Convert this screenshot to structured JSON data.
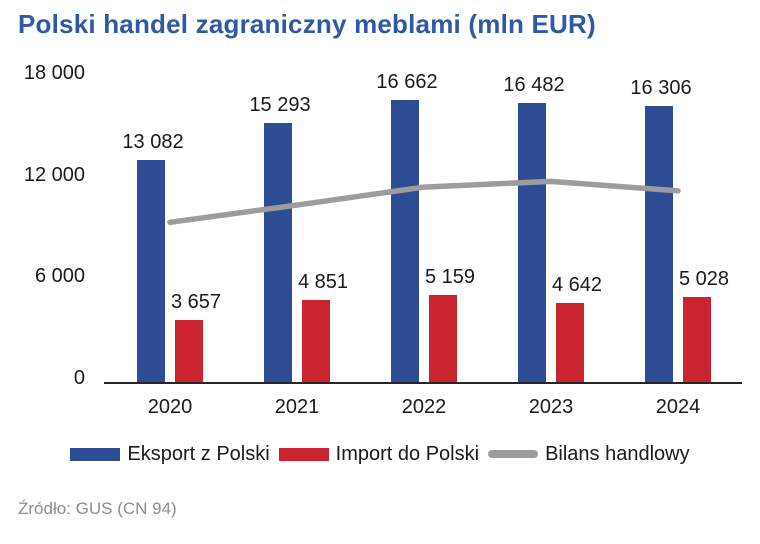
{
  "title": "Polski handel zagraniczny meblami (mln EUR)",
  "source": "Źródło: GUS (CN 94)",
  "colors": {
    "title_blue": "#2F58A5",
    "export_blue": "#2D4C94",
    "import_red": "#C92430",
    "balance_gray": "#9C9C9C",
    "label_black": "#1A1A1A",
    "axis_black": "#262626",
    "source_gray": "#8C8C8C"
  },
  "chart_data": {
    "type": "combo",
    "title": "Polski handel zagraniczny meblami (mln EUR)",
    "categories": [
      "2020",
      "2021",
      "2022",
      "2023",
      "2024"
    ],
    "series": [
      {
        "name": "Eksport z Polski",
        "type": "bar",
        "color_key": "export_blue",
        "values": [
          13082,
          15293,
          16662,
          16482,
          16306
        ],
        "labels": [
          "13 082",
          "15 293",
          "16 662",
          "16 482",
          "16 306"
        ]
      },
      {
        "name": "Import do Polski",
        "type": "bar",
        "color_key": "import_red",
        "values": [
          3657,
          4851,
          5159,
          4642,
          5028
        ],
        "labels": [
          "3 657",
          "4 851",
          "5 159",
          "4 642",
          "5 028"
        ]
      },
      {
        "name": "Bilans handlowy",
        "type": "line",
        "color_key": "balance_gray",
        "values": [
          9425,
          10442,
          11503,
          11840,
          11278
        ],
        "labels": []
      }
    ],
    "y_axis": {
      "min": 0,
      "max": 18000,
      "ticks": [
        18000,
        12000,
        6000,
        0
      ],
      "tick_labels": [
        "18 000",
        "12 000",
        "6 000",
        "0"
      ]
    },
    "x_axis_label": "",
    "y_axis_label": "",
    "grid": false,
    "legend_position": "bottom",
    "data_labels": true
  }
}
